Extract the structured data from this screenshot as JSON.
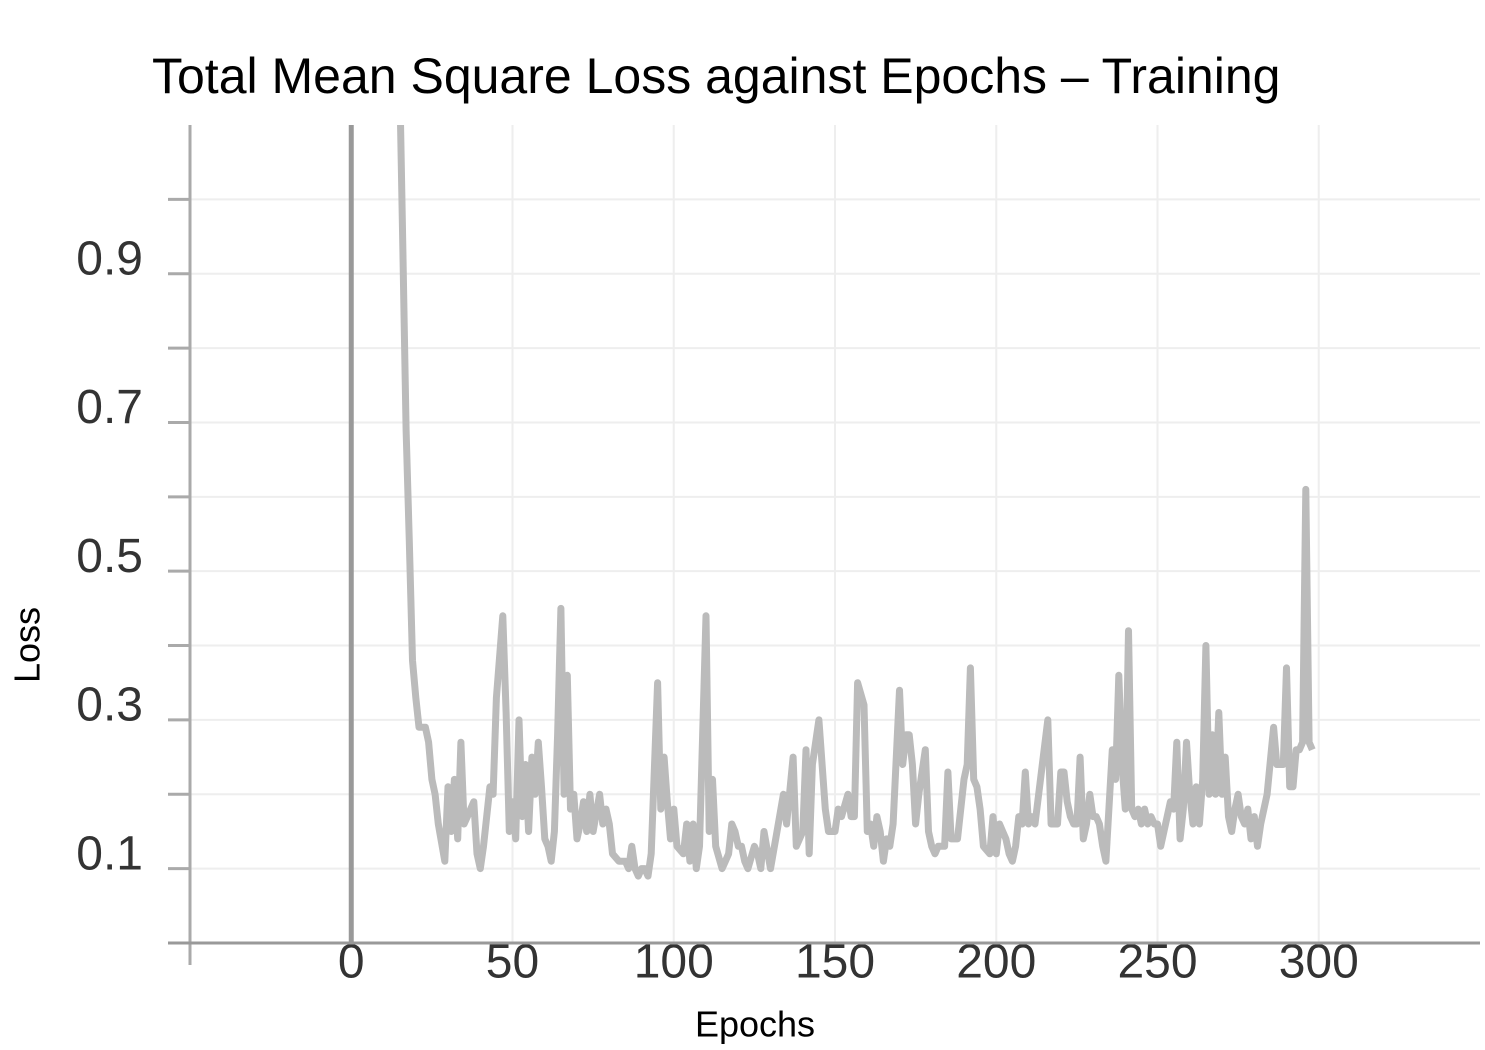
{
  "chart_data": {
    "type": "line",
    "title": "Total Mean Square Loss against Epochs – Training",
    "x_label": "Epochs",
    "y_label": "Loss",
    "xlim": [
      -50,
      350
    ],
    "xticks": [
      0,
      50,
      100,
      150,
      200,
      250,
      300
    ],
    "ylim": [
      0,
      1.1
    ],
    "yticks": [
      0.1,
      0.3,
      0.5,
      0.7,
      0.9
    ],
    "y_minor_ticks": [
      0.2,
      0.4,
      0.6,
      0.8,
      1.0
    ],
    "grid": true,
    "series": [
      {
        "color": "#bbbbbb",
        "x": [
          14,
          16,
          17,
          18,
          19,
          20,
          21,
          23,
          24,
          25,
          26,
          27,
          29,
          30,
          31,
          32,
          33,
          34,
          35,
          36,
          38,
          39,
          40,
          41,
          43,
          44,
          45,
          47,
          48,
          49,
          50,
          51,
          52,
          53,
          54,
          55,
          56,
          57,
          58,
          59,
          60,
          61,
          62,
          63,
          64,
          65,
          66,
          67,
          68,
          69,
          70,
          71,
          72,
          73,
          74,
          75,
          77,
          78,
          79,
          80,
          81,
          83,
          85,
          86,
          87,
          88,
          89,
          90,
          91,
          92,
          93,
          95,
          96,
          97,
          98,
          99,
          100,
          101,
          103,
          104,
          105,
          106,
          107,
          108,
          110,
          111,
          112,
          113,
          115,
          116,
          117,
          118,
          119,
          120,
          121,
          122,
          123,
          125,
          126,
          127,
          128,
          130,
          132,
          134,
          135,
          137,
          138,
          140,
          141,
          142,
          143,
          145,
          146,
          147,
          148,
          150,
          151,
          152,
          154,
          155,
          156,
          157,
          159,
          160,
          161,
          162,
          163,
          164,
          165,
          166,
          167,
          168,
          170,
          171,
          172,
          173,
          174,
          175,
          176,
          178,
          179,
          180,
          181,
          182,
          184,
          185,
          186,
          188,
          190,
          191,
          192,
          193,
          194,
          195,
          196,
          198,
          199,
          200,
          201,
          202,
          203,
          204,
          205,
          206,
          207,
          208,
          209,
          210,
          211,
          212,
          216,
          217,
          219,
          220,
          221,
          222,
          223,
          224,
          225,
          226,
          227,
          228,
          229,
          230,
          231,
          232,
          233,
          234,
          236,
          237,
          238,
          239,
          240,
          241,
          242,
          243,
          244,
          245,
          246,
          247,
          248,
          249,
          250,
          251,
          254,
          255,
          256,
          257,
          258,
          259,
          260,
          261,
          262,
          263,
          264,
          265,
          266,
          267,
          268,
          269,
          270,
          271,
          272,
          273,
          274,
          275,
          276,
          277,
          278,
          279,
          280,
          281,
          282,
          284,
          286,
          287,
          288,
          289,
          290,
          291,
          292,
          293,
          294,
          295,
          296,
          297,
          298
        ],
        "values": [
          1.4,
          0.93,
          0.69,
          0.54,
          0.38,
          0.33,
          0.29,
          0.29,
          0.27,
          0.22,
          0.2,
          0.16,
          0.11,
          0.21,
          0.15,
          0.22,
          0.14,
          0.27,
          0.16,
          0.17,
          0.19,
          0.12,
          0.1,
          0.13,
          0.21,
          0.2,
          0.33,
          0.44,
          0.31,
          0.15,
          0.19,
          0.14,
          0.3,
          0.17,
          0.24,
          0.15,
          0.25,
          0.2,
          0.27,
          0.21,
          0.14,
          0.13,
          0.11,
          0.15,
          0.28,
          0.45,
          0.2,
          0.36,
          0.18,
          0.2,
          0.14,
          0.16,
          0.19,
          0.15,
          0.2,
          0.15,
          0.2,
          0.16,
          0.18,
          0.16,
          0.12,
          0.11,
          0.11,
          0.1,
          0.13,
          0.1,
          0.09,
          0.1,
          0.1,
          0.09,
          0.12,
          0.35,
          0.18,
          0.25,
          0.19,
          0.14,
          0.18,
          0.13,
          0.12,
          0.16,
          0.11,
          0.16,
          0.1,
          0.13,
          0.44,
          0.15,
          0.22,
          0.13,
          0.1,
          0.11,
          0.12,
          0.16,
          0.15,
          0.13,
          0.13,
          0.11,
          0.1,
          0.13,
          0.12,
          0.1,
          0.15,
          0.1,
          0.15,
          0.2,
          0.16,
          0.25,
          0.13,
          0.15,
          0.26,
          0.12,
          0.24,
          0.3,
          0.24,
          0.18,
          0.15,
          0.15,
          0.18,
          0.17,
          0.2,
          0.17,
          0.17,
          0.35,
          0.32,
          0.15,
          0.16,
          0.13,
          0.17,
          0.15,
          0.11,
          0.14,
          0.13,
          0.16,
          0.34,
          0.24,
          0.28,
          0.28,
          0.24,
          0.16,
          0.2,
          0.26,
          0.15,
          0.13,
          0.12,
          0.13,
          0.13,
          0.23,
          0.14,
          0.14,
          0.22,
          0.24,
          0.37,
          0.22,
          0.21,
          0.18,
          0.13,
          0.12,
          0.17,
          0.12,
          0.16,
          0.15,
          0.14,
          0.12,
          0.11,
          0.13,
          0.17,
          0.16,
          0.23,
          0.16,
          0.17,
          0.16,
          0.3,
          0.16,
          0.16,
          0.23,
          0.23,
          0.19,
          0.17,
          0.16,
          0.16,
          0.25,
          0.14,
          0.16,
          0.2,
          0.17,
          0.17,
          0.16,
          0.13,
          0.11,
          0.26,
          0.22,
          0.36,
          0.24,
          0.18,
          0.42,
          0.18,
          0.17,
          0.18,
          0.16,
          0.18,
          0.16,
          0.17,
          0.16,
          0.16,
          0.13,
          0.19,
          0.18,
          0.27,
          0.14,
          0.18,
          0.27,
          0.2,
          0.16,
          0.21,
          0.16,
          0.22,
          0.4,
          0.2,
          0.28,
          0.2,
          0.31,
          0.2,
          0.25,
          0.17,
          0.15,
          0.18,
          0.2,
          0.17,
          0.16,
          0.18,
          0.14,
          0.17,
          0.13,
          0.16,
          0.2,
          0.29,
          0.24,
          0.24,
          0.24,
          0.37,
          0.21,
          0.21,
          0.26,
          0.26,
          0.27,
          0.61,
          0.27,
          0.26
        ]
      }
    ]
  }
}
